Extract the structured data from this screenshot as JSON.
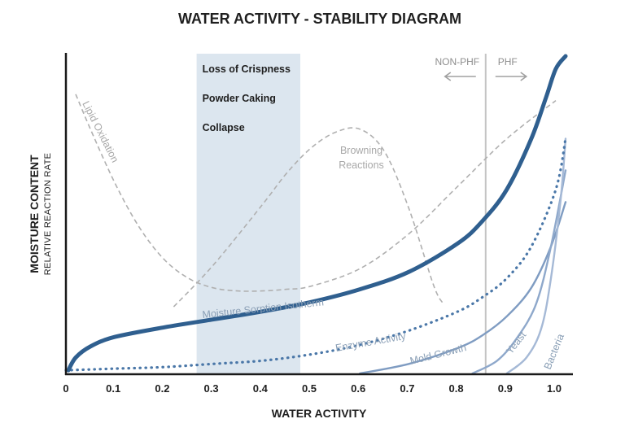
{
  "chart_data": {
    "type": "line",
    "title": "WATER ACTIVITY - STABILITY DIAGRAM",
    "xlabel": "WATER ACTIVITY",
    "ylabel": "MOISTURE CONTENT",
    "ylabel_secondary": "RELATIVE REACTION RATE",
    "xlim": [
      0,
      1.03
    ],
    "ylim": [
      0,
      100
    ],
    "x_ticks": [
      "0",
      "0.1",
      "0.2",
      "0.3",
      "0.4",
      "0.5",
      "0.6",
      "0.7",
      "0.8",
      "0.9",
      "1.0"
    ],
    "y_ticks_shown": false,
    "shaded_region": {
      "x_range": [
        0.3,
        0.5
      ],
      "labels": [
        "Loss of Crispness",
        "Powder Caking",
        "Collapse"
      ]
    },
    "threshold": {
      "x": 0.89,
      "left_label": "NON-PHF",
      "right_label": "PHF"
    },
    "series": [
      {
        "name": "Moisture Sorption Isotherm",
        "style": "solid-thick",
        "color": "#2f5f8f",
        "x": [
          0.005,
          0.02,
          0.05,
          0.1,
          0.2,
          0.3,
          0.4,
          0.5,
          0.6,
          0.7,
          0.8,
          0.85,
          0.9,
          0.95,
          0.98,
          1.0,
          1.02
        ],
        "y": [
          1,
          5,
          8.5,
          11.5,
          14.5,
          17,
          19.5,
          22.5,
          26.5,
          32,
          41,
          48,
          58,
          74,
          87,
          96,
          100
        ]
      },
      {
        "name": "Lipid Oxidation",
        "style": "dashed",
        "color": "#b0b0b0",
        "x": [
          0.02,
          0.05,
          0.1,
          0.15,
          0.2,
          0.25,
          0.3,
          0.35,
          0.4,
          0.45,
          0.5,
          0.6,
          0.7,
          0.8,
          0.9,
          1.0
        ],
        "y": [
          88,
          77,
          60,
          46,
          36,
          30,
          27,
          26,
          26,
          26.5,
          27.5,
          33,
          44,
          59,
          74,
          86
        ]
      },
      {
        "name": "Browning Reactions",
        "style": "dashed",
        "color": "#b0b0b0",
        "x": [
          0.22,
          0.3,
          0.4,
          0.45,
          0.5,
          0.55,
          0.6,
          0.65,
          0.7,
          0.75,
          0.77
        ],
        "y": [
          21,
          34,
          53,
          63,
          71,
          76,
          77,
          70,
          52,
          28,
          22
        ]
      },
      {
        "name": "Enzyme Activity",
        "style": "dotted",
        "color": "#4a77a8",
        "x": [
          0.0,
          0.1,
          0.2,
          0.3,
          0.4,
          0.5,
          0.6,
          0.7,
          0.8,
          0.85,
          0.9,
          0.95,
          1.0,
          1.02
        ],
        "y": [
          1,
          1.5,
          2,
          3,
          4,
          6,
          9,
          13.5,
          19.5,
          24,
          30,
          40,
          58,
          74
        ]
      },
      {
        "name": "Mold Growth",
        "style": "solid",
        "color": "#7f9cc2",
        "x": [
          0.6,
          0.7,
          0.8,
          0.85,
          0.9,
          0.95,
          0.99,
          1.02
        ],
        "y": [
          0,
          3,
          8,
          12,
          18,
          27,
          40,
          54
        ]
      },
      {
        "name": "Yeast",
        "style": "solid",
        "color": "#8ea8cb",
        "x": [
          0.83,
          0.88,
          0.92,
          0.96,
          0.99,
          1.02
        ],
        "y": [
          0,
          4,
          11,
          22,
          40,
          64
        ]
      },
      {
        "name": "Bacteria",
        "style": "solid",
        "color": "#a5b9d6",
        "x": [
          0.9,
          0.94,
          0.97,
          0.99,
          1.01,
          1.02
        ],
        "y": [
          0,
          5,
          14,
          30,
          55,
          74
        ]
      }
    ]
  }
}
